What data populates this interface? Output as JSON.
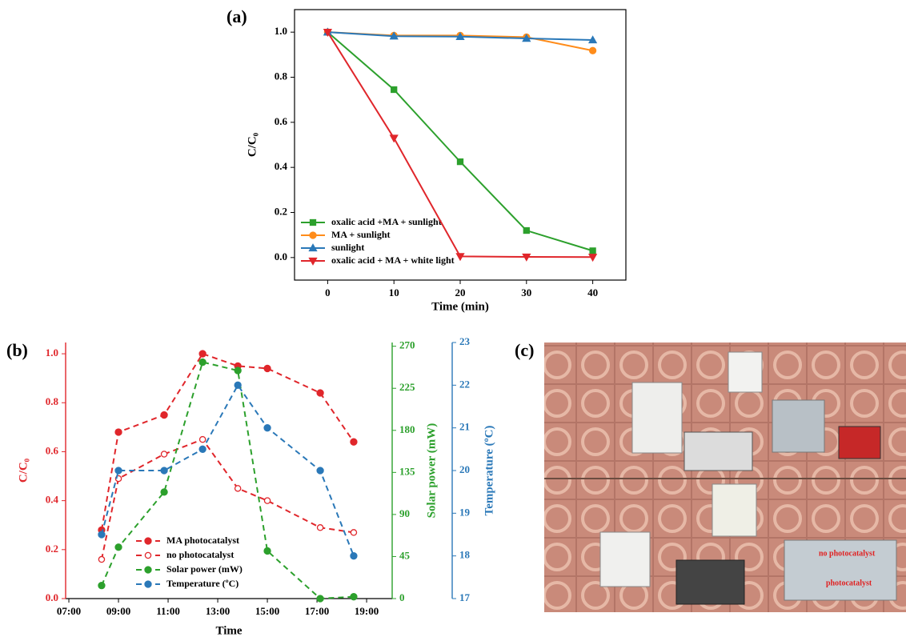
{
  "chart_data": [
    {
      "type": "line",
      "panel_label": "(a)",
      "xlabel": "Time (min)",
      "ylabel": "C/C₀",
      "x": [
        0,
        10,
        20,
        30,
        40
      ],
      "xlim": [
        -5,
        45
      ],
      "xticks": [
        0,
        10,
        20,
        30,
        40
      ],
      "ylim": [
        -0.1,
        1.1
      ],
      "yticks": [
        {
          "value": 0,
          "label": "0.0"
        },
        0.2,
        0.4,
        0.6,
        0.8,
        {
          "value": 1,
          "label": "1.0"
        }
      ],
      "legend": "lower left",
      "linestyle": "solid",
      "series": [
        {
          "name": "oxalic acid +MA + sunlight",
          "color": "#2ca02c",
          "marker": "square",
          "values": [
            1.0,
            0.745,
            0.425,
            0.12,
            0.03
          ]
        },
        {
          "name": "MA + sunlight",
          "color": "#ff8c1a",
          "marker": "circle",
          "values": [
            1.0,
            0.985,
            0.985,
            0.978,
            0.918
          ]
        },
        {
          "name": "sunlight",
          "color": "#2a78b8",
          "marker": "triangle-up",
          "values": [
            1.0,
            0.982,
            0.98,
            0.972,
            0.965
          ]
        },
        {
          "name": "oxalic acid + MA + white light",
          "color": "#e0262b",
          "marker": "triangle-down",
          "values": [
            1.0,
            0.53,
            0.005,
            0.003,
            0.002
          ]
        }
      ]
    },
    {
      "type": "line",
      "panel_label": "(b)",
      "xlabel": "Time",
      "ylabel": "C/C₀",
      "y2label": "Solar power (mW)",
      "y3label": "Temperature (ºC)",
      "x": [
        8.32,
        9.0,
        10.84,
        12.39,
        13.81,
        15.0,
        17.13,
        18.48
      ],
      "xlim": [
        6.87,
        20.03
      ],
      "xticks": [
        {
          "value": 7,
          "label": "07:00"
        },
        {
          "value": 9,
          "label": "09:00"
        },
        {
          "value": 11,
          "label": "11:00"
        },
        {
          "value": 13,
          "label": "13:00"
        },
        {
          "value": 15,
          "label": "15:00"
        },
        {
          "value": 17,
          "label": "17:00"
        },
        {
          "value": 19,
          "label": "19:00"
        }
      ],
      "ylim": [
        0,
        1.046
      ],
      "yticks": [
        {
          "value": 0,
          "label": "0.0"
        },
        0.2,
        0.4,
        0.6,
        0.8,
        {
          "value": 1,
          "label": "1.0"
        }
      ],
      "ycolor": "#e0262b",
      "y2lim": [
        0,
        274
      ],
      "y2ticks": [
        0,
        45,
        90,
        135,
        180,
        225,
        270
      ],
      "y2color": "#2ca02c",
      "y3lim": [
        17,
        23
      ],
      "y3ticks": [
        17,
        18,
        19,
        20,
        21,
        22,
        23
      ],
      "y3color": "#2a78b8",
      "legend": "lower left",
      "linestyle": "dashed",
      "series": [
        {
          "name": "MA photocatalyst",
          "color": "#e0262b",
          "marker": "circle",
          "axis": "y",
          "values": [
            0.28,
            0.68,
            0.75,
            1.0,
            0.95,
            0.94,
            0.84,
            0.64
          ]
        },
        {
          "name": "no photocatalyst",
          "color": "#e0262b",
          "marker": "open-circle",
          "axis": "y",
          "values": [
            0.16,
            0.49,
            0.59,
            0.65,
            0.45,
            0.4,
            0.29,
            0.27
          ]
        },
        {
          "name": "Solar power (mW)",
          "color": "#2ca02c",
          "marker": "circle",
          "axis": "y2",
          "values": [
            14,
            55,
            114,
            253,
            244,
            51,
            0,
            2
          ]
        },
        {
          "name": "Temperature (ºC)",
          "color": "#2a78b8",
          "marker": "circle",
          "axis": "y3",
          "values": [
            18.5,
            20,
            20,
            20.5,
            22,
            21,
            20,
            18
          ]
        }
      ]
    }
  ],
  "photo": {
    "panel_label": "(c)",
    "annotations": [
      "no photocatalyst",
      "photocatalyst"
    ]
  }
}
